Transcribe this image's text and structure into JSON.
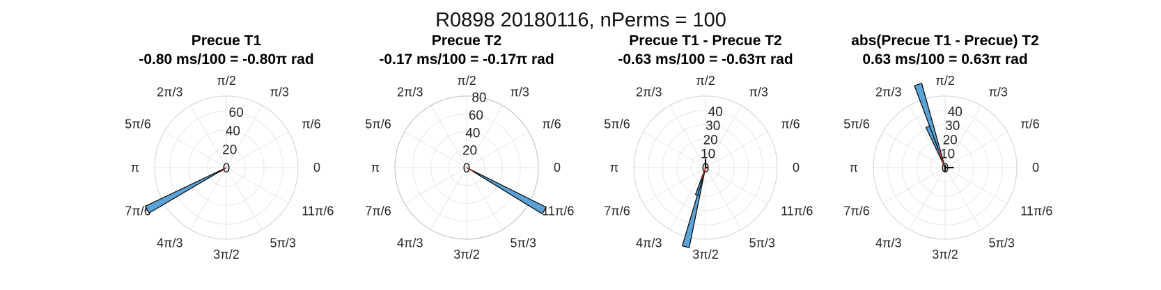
{
  "figure": {
    "title": "R0898 20180116, nPerms = 100"
  },
  "colors": {
    "bar_fill": "#5ba3d6",
    "bar_edge": "#000000",
    "mean_line": "#e02020",
    "grid": "#e6e6e6"
  },
  "chart_data": [
    {
      "type": "polar-histogram",
      "title_line1": "Precue T1",
      "title_line2": "-0.80 ms/100 = -0.80π rad",
      "angle_tick_labels": [
        "0",
        "π/6",
        "π/3",
        "π/2",
        "2π/3",
        "5π/6",
        "π",
        "7π/6",
        "4π/3",
        "3π/2",
        "5π/3",
        "11π/6"
      ],
      "r_ticks": [
        0,
        20,
        40,
        60
      ],
      "r_tick_labels": [
        "0",
        "20",
        "40",
        "60"
      ],
      "r_max": 76,
      "grid": true,
      "show_outer_edge": false,
      "bars": [
        {
          "angle_deg": 208,
          "width_deg": 5,
          "value": 95
        }
      ],
      "mean_angle_deg": 216,
      "mean_length": 8,
      "markers": []
    },
    {
      "type": "polar-histogram",
      "title_line1": "Precue T2",
      "title_line2": "-0.17 ms/100 = -0.17π rad",
      "angle_tick_labels": [
        "0",
        "π/6",
        "π/3",
        "π/2",
        "2π/3",
        "5π/6",
        "π",
        "7π/6",
        "4π/3",
        "3π/2",
        "5π/3",
        "11π/6"
      ],
      "r_ticks": [
        0,
        20,
        40,
        60,
        80
      ],
      "r_tick_labels": [
        "0",
        "20",
        "40",
        "60",
        "80"
      ],
      "r_max": 80,
      "grid": true,
      "show_outer_edge": true,
      "bars": [
        {
          "angle_deg": 331,
          "width_deg": 5,
          "value": 99
        }
      ],
      "mean_angle_deg": 329,
      "mean_length": 10,
      "markers": []
    },
    {
      "type": "polar-histogram",
      "title_line1": "Precue T1 - Precue T2",
      "title_line2": "-0.63 ms/100 = -0.63π rad",
      "angle_tick_labels": [
        "0",
        "π/6",
        "π/3",
        "π/2",
        "2π/3",
        "5π/6",
        "π",
        "7π/6",
        "4π/3",
        "3π/2",
        "5π/3",
        "11π/6"
      ],
      "r_ticks": [
        0,
        10,
        20,
        30,
        40
      ],
      "r_tick_labels": [
        "0",
        "10",
        "20",
        "30",
        "40"
      ],
      "r_max": 50,
      "grid": true,
      "show_outer_edge": false,
      "bars": [
        {
          "angle_deg": 256,
          "width_deg": 5,
          "value": 57
        },
        {
          "angle_deg": 252,
          "width_deg": 5,
          "value": 20
        }
      ],
      "mean_angle_deg": 253,
      "mean_length": 8,
      "markers": [
        {
          "angle_deg": 90,
          "value": 6
        },
        {
          "angle_deg": 0,
          "value": 1.5
        }
      ]
    },
    {
      "type": "polar-histogram",
      "title_line1": "abs(Precue T1 - Precue) T2",
      "title_line2": "0.63 ms/100 = 0.63π rad",
      "angle_tick_labels": [
        "0",
        "π/6",
        "π/3",
        "π/2",
        "2π/3",
        "5π/6",
        "π",
        "7π/6",
        "4π/3",
        "3π/2",
        "5π/3",
        "11π/6"
      ],
      "r_ticks": [
        0,
        10,
        20,
        30,
        40
      ],
      "r_tick_labels": [
        "0",
        "10",
        "20",
        "30",
        "40"
      ],
      "r_max": 50,
      "grid": true,
      "show_outer_edge": false,
      "bars": [
        {
          "angle_deg": 108,
          "width_deg": 5,
          "value": 61
        },
        {
          "angle_deg": 113,
          "width_deg": 5,
          "value": 31
        }
      ],
      "mean_angle_deg": 110,
      "mean_length": 14,
      "markers": [
        {
          "angle_deg": 0,
          "value": 6
        },
        {
          "angle_deg": 270,
          "value": 3
        },
        {
          "angle_deg": 90,
          "value": 2
        }
      ]
    }
  ]
}
